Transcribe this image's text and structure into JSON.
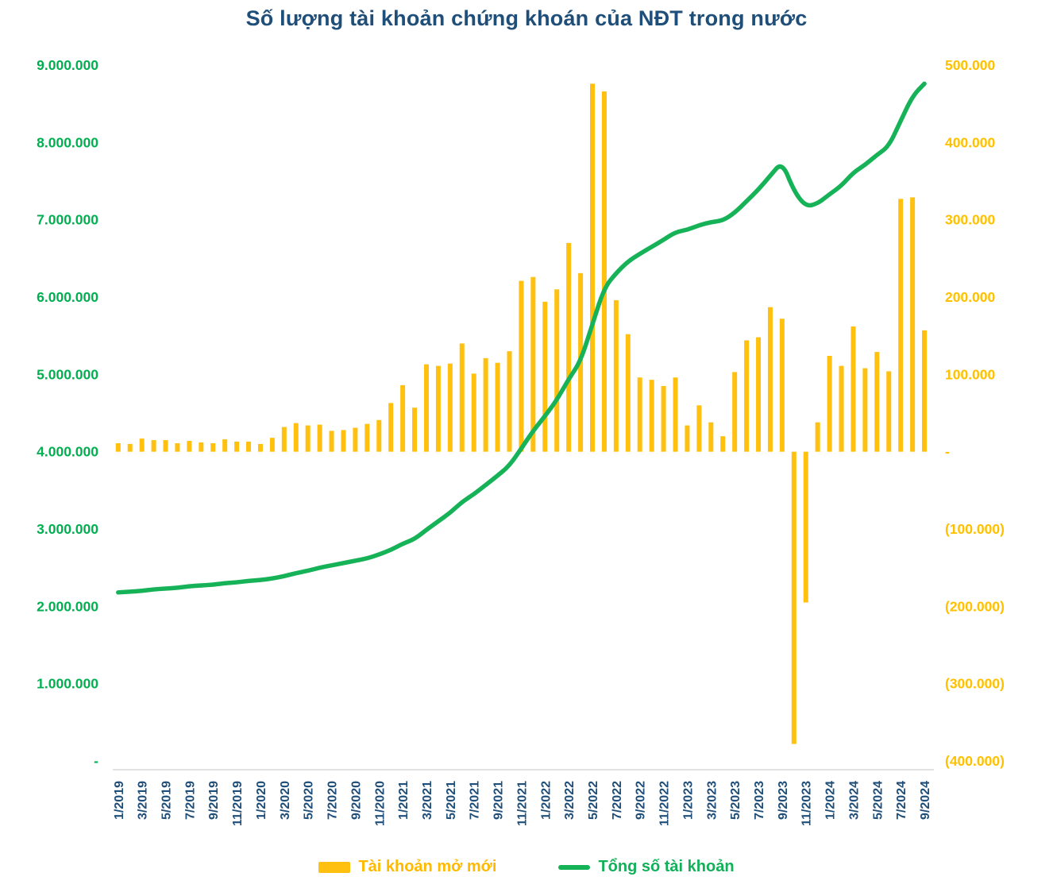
{
  "title": "Số lượng tài khoản chứng khoán của NĐT trong nước",
  "legend": {
    "bar_label": "Tài khoản mở mới",
    "line_label": "Tổng số tài khoản"
  },
  "colors": {
    "bar": "#FFC010",
    "line": "#16B257",
    "left_axis_labels": "#00B050",
    "right_axis_labels": "#FFC000",
    "x_axis_labels": "#1F4E79",
    "title": "#1F4E79",
    "baseline": "#D9D9D9"
  },
  "chart_data": {
    "type": "bar",
    "subtype": "combo dual-axis: monthly bars (right axis) + cumulative line (left axis)",
    "grid": "off",
    "legend_position": "bottom-center",
    "x_tick_every": 2,
    "months": [
      "1/2019",
      "2/2019",
      "3/2019",
      "4/2019",
      "5/2019",
      "6/2019",
      "7/2019",
      "8/2019",
      "9/2019",
      "10/2019",
      "11/2019",
      "12/2019",
      "1/2020",
      "2/2020",
      "3/2020",
      "4/2020",
      "5/2020",
      "6/2020",
      "7/2020",
      "8/2020",
      "9/2020",
      "10/2020",
      "11/2020",
      "12/2020",
      "1/2021",
      "2/2021",
      "3/2021",
      "4/2021",
      "5/2021",
      "6/2021",
      "7/2021",
      "8/2021",
      "9/2021",
      "10/2021",
      "11/2021",
      "12/2021",
      "1/2022",
      "2/2022",
      "3/2022",
      "4/2022",
      "5/2022",
      "6/2022",
      "7/2022",
      "8/2022",
      "9/2022",
      "10/2022",
      "11/2022",
      "12/2022",
      "1/2023",
      "2/2023",
      "3/2023",
      "4/2023",
      "5/2023",
      "6/2023",
      "7/2023",
      "8/2023",
      "9/2023",
      "10/2023",
      "11/2023",
      "12/2023",
      "1/2024",
      "2/2024",
      "3/2024",
      "4/2024",
      "5/2024",
      "6/2024",
      "7/2024",
      "8/2024",
      "9/2024"
    ],
    "left_axis": {
      "min": 0,
      "max": 9000000,
      "tick_step": 1000000,
      "tick_labels": [
        "-",
        "1.000.000",
        "2.000.000",
        "3.000.000",
        "4.000.000",
        "5.000.000",
        "6.000.000",
        "7.000.000",
        "8.000.000",
        "9.000.000"
      ]
    },
    "right_axis": {
      "min": -400000,
      "max": 500000,
      "tick_step": 100000,
      "tick_labels": [
        "(400.000)",
        "(300.000)",
        "(200.000)",
        "(100.000)",
        "-",
        "100.000",
        "200.000",
        "300.000",
        "400.000",
        "500.000"
      ]
    },
    "series": [
      {
        "name": "Tài khoản mở mới",
        "type": "bar",
        "axis": "right",
        "unit": "accounts/month",
        "values": [
          11000,
          10000,
          17000,
          15000,
          15000,
          11000,
          14000,
          12000,
          11000,
          16000,
          13000,
          13000,
          10000,
          18000,
          32000,
          37000,
          34000,
          35000,
          27000,
          28000,
          31000,
          36000,
          41000,
          63000,
          86000,
          57000,
          113000,
          111000,
          114000,
          140000,
          101000,
          121000,
          115000,
          130000,
          221000,
          226000,
          194000,
          210000,
          270000,
          231000,
          476000,
          466000,
          196000,
          152000,
          96000,
          93000,
          85000,
          96000,
          34000,
          60000,
          38000,
          20000,
          103000,
          144000,
          148000,
          187000,
          172000,
          -378000,
          -195000,
          38000,
          124000,
          111000,
          162000,
          108000,
          129000,
          104000,
          327000,
          329000,
          157000
        ]
      },
      {
        "name": "Tổng số tài khoản",
        "type": "line",
        "axis": "left",
        "unit": "accounts (cumulative)",
        "values": [
          2180000,
          2190000,
          2200000,
          2220000,
          2230000,
          2240000,
          2260000,
          2270000,
          2280000,
          2300000,
          2310000,
          2330000,
          2340000,
          2360000,
          2390000,
          2430000,
          2460000,
          2500000,
          2530000,
          2560000,
          2590000,
          2620000,
          2670000,
          2730000,
          2810000,
          2870000,
          2990000,
          3100000,
          3210000,
          3350000,
          3450000,
          3570000,
          3690000,
          3820000,
          4040000,
          4270000,
          4460000,
          4670000,
          4940000,
          5170000,
          5650000,
          6120000,
          6310000,
          6460000,
          6560000,
          6650000,
          6740000,
          6840000,
          6870000,
          6930000,
          6970000,
          6990000,
          7090000,
          7240000,
          7390000,
          7570000,
          7750000,
          7370000,
          7170000,
          7210000,
          7330000,
          7440000,
          7610000,
          7710000,
          7840000,
          7950000,
          8280000,
          8600000,
          8760000
        ]
      }
    ]
  }
}
